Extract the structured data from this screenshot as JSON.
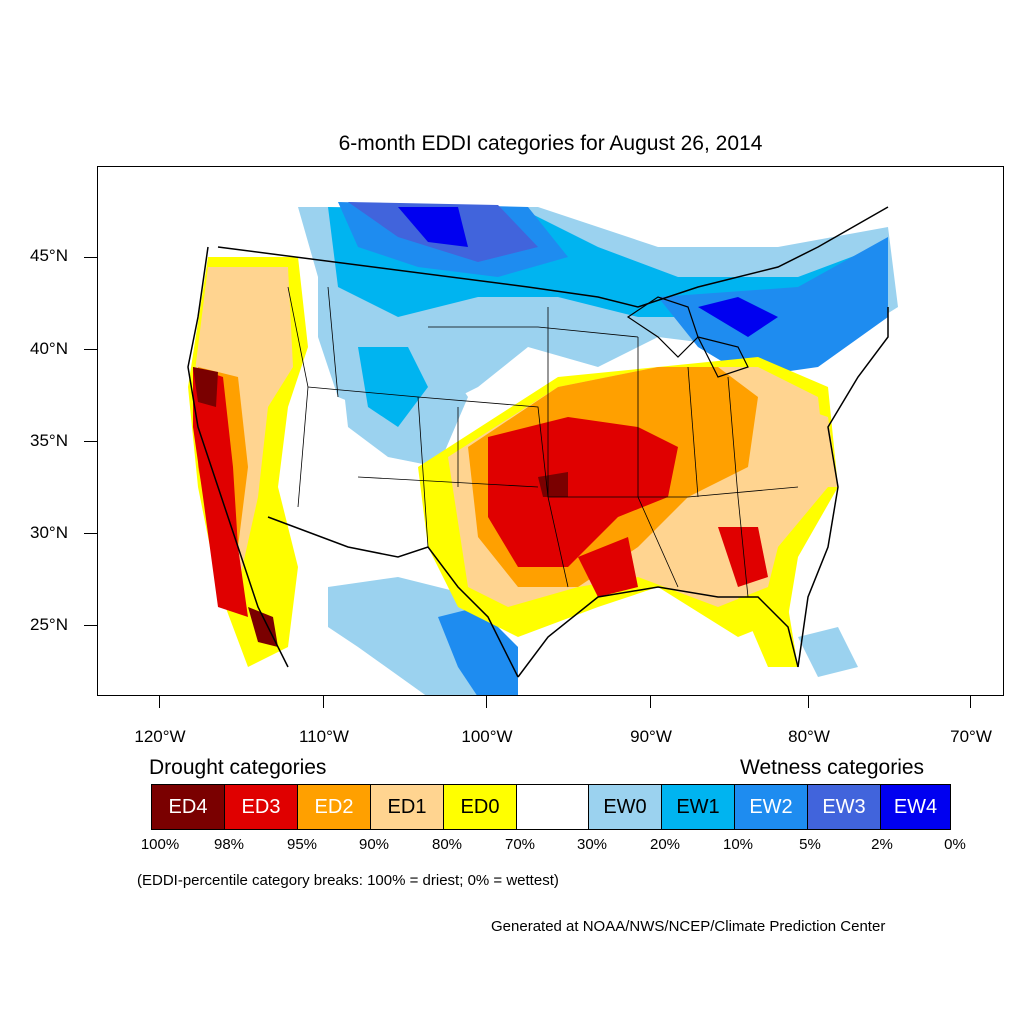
{
  "title": "6-month EDDI categories for August 26, 2014",
  "map": {
    "latitude_labels": [
      "45°N",
      "40°N",
      "35°N",
      "30°N",
      "25°N"
    ],
    "longitude_labels": [
      "120°W",
      "110°W",
      "100°W",
      "90°W",
      "80°W",
      "70°W"
    ],
    "region": "Contiguous United States with parts of Canada and Mexico"
  },
  "legend": {
    "drought_title": "Drought categories",
    "wetness_title": "Wetness categories",
    "categories": [
      {
        "label": "ED4",
        "color": "#7a0000"
      },
      {
        "label": "ED3",
        "color": "#e00000"
      },
      {
        "label": "ED2",
        "color": "#ffa000"
      },
      {
        "label": "ED1",
        "color": "#ffd490"
      },
      {
        "label": "ED0",
        "color": "#ffff00"
      },
      {
        "label": "",
        "color": "#ffffff"
      },
      {
        "label": "EW0",
        "color": "#9bd2ef"
      },
      {
        "label": "EW1",
        "color": "#00b4f0"
      },
      {
        "label": "EW2",
        "color": "#1e8cf0"
      },
      {
        "label": "EW3",
        "color": "#4164dc"
      },
      {
        "label": "EW4",
        "color": "#0000f0"
      }
    ],
    "percentiles": [
      "100%",
      "98%",
      "95%",
      "90%",
      "80%",
      "70%",
      "30%",
      "20%",
      "10%",
      "5%",
      "2%",
      "0%"
    ],
    "note": "(EDDI-percentile category breaks: 100% = driest; 0% = wettest)"
  },
  "credit": "Generated at NOAA/NWS/NCEP/Climate Prediction Center"
}
